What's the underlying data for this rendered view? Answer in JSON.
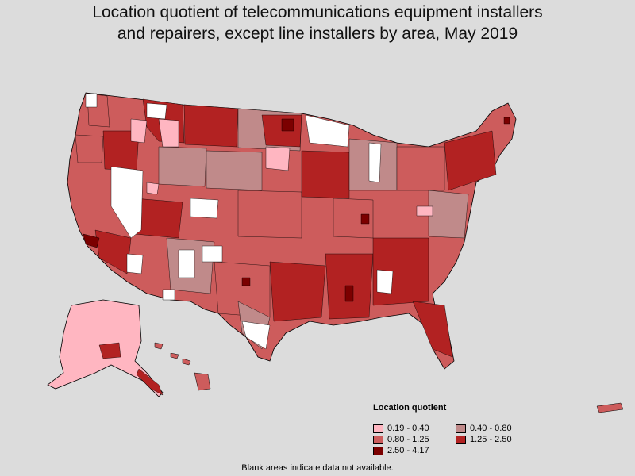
{
  "title_line1": "Location quotient of telecommunications equipment installers",
  "title_line2": "and repairers, except line installers by area, May 2019",
  "legend": {
    "title": "Location quotient",
    "items": [
      {
        "label": "0.19 - 0.40",
        "color": "#ffb6c1"
      },
      {
        "label": "0.40 - 0.80",
        "color": "#c08a8a"
      },
      {
        "label": "0.80 - 1.25",
        "color": "#cd5c5c"
      },
      {
        "label": "1.25 - 2.50",
        "color": "#b22222"
      },
      {
        "label": "2.50 - 4.17",
        "color": "#7b0000"
      }
    ]
  },
  "footnote": "Blank areas indicate data not available.",
  "colors": {
    "background": "#dcdcdc",
    "no_data": "#ffffff",
    "border": "#000000"
  }
}
